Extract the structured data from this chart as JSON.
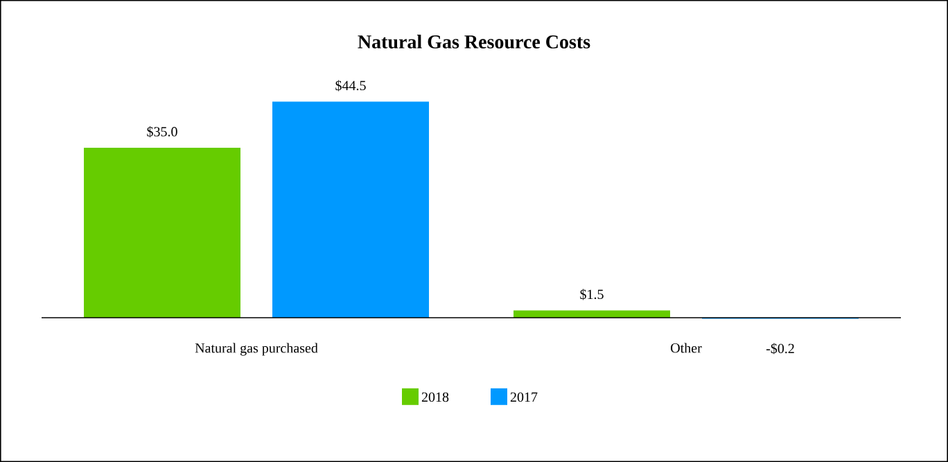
{
  "chart_data": {
    "type": "bar",
    "title": "Natural Gas Resource Costs",
    "categories": [
      "Natural gas purchased",
      "Other"
    ],
    "legend": "bottom",
    "data_labels": false,
    "series": [
      {
        "name": "2018",
        "color": "#66cc00",
        "values": [
          35.0,
          1.5
        ],
        "value_labels": [
          "$35.0",
          "$1.5"
        ]
      },
      {
        "name": "2017",
        "color": "#0099ff",
        "values": [
          44.5,
          -0.2
        ],
        "value_labels": [
          "$44.5",
          "-$0.2"
        ]
      }
    ]
  }
}
